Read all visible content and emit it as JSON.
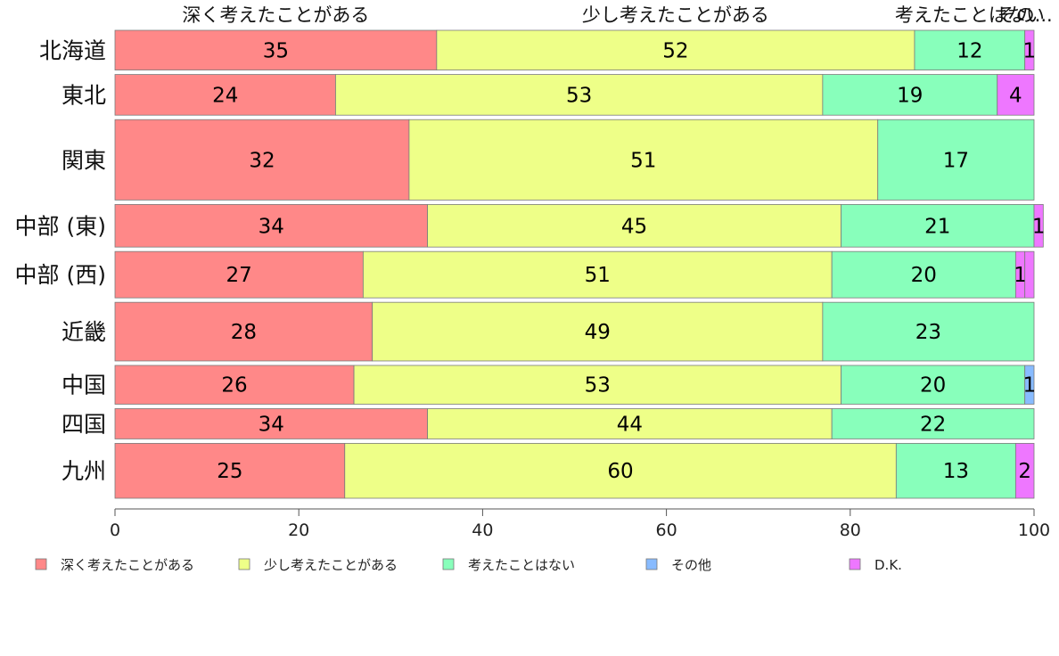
{
  "chart_data": {
    "type": "bar",
    "orientation": "horizontal",
    "stacked": true,
    "categories": [
      "北海道",
      "東北",
      "関東",
      "中部 (東)",
      "中部 (西)",
      "近畿",
      "中国",
      "四国",
      "九州"
    ],
    "row_weights": [
      42,
      43,
      85,
      45,
      49,
      62,
      41,
      32,
      58
    ],
    "series": [
      {
        "name": "深く考えたことがある",
        "color": "#ff8888",
        "values": [
          35,
          24,
          32,
          34,
          27,
          28,
          26,
          34,
          25
        ]
      },
      {
        "name": "少し考えたことがある",
        "color": "#eeff88",
        "values": [
          52,
          53,
          51,
          45,
          51,
          49,
          53,
          44,
          60
        ]
      },
      {
        "name": "考えたことはない",
        "color": "#88ffbb",
        "values": [
          12,
          19,
          17,
          21,
          20,
          23,
          20,
          22,
          13
        ]
      },
      {
        "name": "その他",
        "color": "#88bbff",
        "values": [
          0,
          0,
          0,
          0,
          0,
          0,
          1,
          0,
          0
        ]
      },
      {
        "name": "D.K.",
        "color": "#ee77ff",
        "values": [
          1,
          4,
          0,
          1,
          1,
          0,
          0,
          0,
          2
        ]
      }
    ],
    "top_labels": [
      "深く考えたことがある",
      "少し考えたことがある",
      "考えたことはない",
      "その..."
    ],
    "xticks": [
      "0",
      "20",
      "40",
      "60",
      "80",
      "100"
    ],
    "xlim": [
      0,
      100
    ],
    "grid": false,
    "legend_position": "bottom"
  }
}
